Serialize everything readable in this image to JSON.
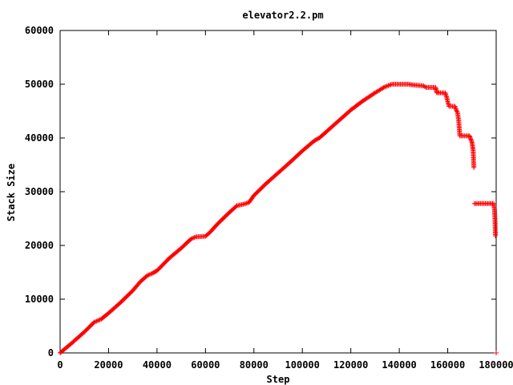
{
  "chart_data": {
    "type": "scatter",
    "title": "elevator2.2.pm",
    "xlabel": "Step",
    "ylabel": "Stack Size",
    "xlim": [
      0,
      180000
    ],
    "ylim": [
      0,
      60000
    ],
    "x_ticks": [
      "0",
      "20000",
      "40000",
      "60000",
      "80000",
      "100000",
      "120000",
      "140000",
      "160000",
      "180000"
    ],
    "y_ticks": [
      "0",
      "10000",
      "20000",
      "30000",
      "40000",
      "50000",
      "60000"
    ],
    "marker": "+",
    "grid": false,
    "legend": "none",
    "color": "#ff0000",
    "series": [
      {
        "points": [
          [
            0,
            0
          ],
          [
            5000,
            1900
          ],
          [
            10000,
            3900
          ],
          [
            14000,
            5700
          ],
          [
            15000,
            5900
          ],
          [
            17000,
            6300
          ],
          [
            20000,
            7400
          ],
          [
            25000,
            9400
          ],
          [
            30000,
            11600
          ],
          [
            33000,
            13200
          ],
          [
            36000,
            14400
          ],
          [
            38000,
            14800
          ],
          [
            40000,
            15300
          ],
          [
            45000,
            17600
          ],
          [
            50000,
            19500
          ],
          [
            54000,
            21200
          ],
          [
            56000,
            21600
          ],
          [
            60000,
            21700
          ],
          [
            62000,
            22500
          ],
          [
            65000,
            24000
          ],
          [
            70000,
            26200
          ],
          [
            73000,
            27400
          ],
          [
            76000,
            27700
          ],
          [
            78000,
            28000
          ],
          [
            80000,
            29300
          ],
          [
            85000,
            31500
          ],
          [
            90000,
            33500
          ],
          [
            95000,
            35500
          ],
          [
            100000,
            37600
          ],
          [
            105000,
            39500
          ],
          [
            107000,
            40000
          ],
          [
            110000,
            41200
          ],
          [
            115000,
            43200
          ],
          [
            120000,
            45200
          ],
          [
            125000,
            46900
          ],
          [
            130000,
            48400
          ],
          [
            134000,
            49500
          ],
          [
            137000,
            50000
          ],
          [
            140000,
            50000
          ],
          [
            144000,
            50000
          ],
          [
            145000,
            49900
          ],
          [
            150000,
            49700
          ],
          [
            151000,
            49400
          ],
          [
            155000,
            49400
          ],
          [
            155500,
            48400
          ],
          [
            159000,
            48400
          ],
          [
            159500,
            47700
          ],
          [
            160000,
            46800
          ],
          [
            160500,
            45900
          ],
          [
            163000,
            45900
          ],
          [
            163500,
            45200
          ],
          [
            164000,
            44800
          ],
          [
            164500,
            43400
          ],
          [
            165000,
            40400
          ],
          [
            169000,
            40400
          ],
          [
            169500,
            39800
          ],
          [
            170000,
            39200
          ],
          [
            170500,
            37700
          ],
          [
            170800,
            34500
          ],
          [
            171000,
            27800
          ],
          [
            179000,
            27800
          ],
          [
            179300,
            26600
          ],
          [
            179500,
            25000
          ],
          [
            179700,
            21800
          ],
          [
            180000,
            0
          ]
        ]
      }
    ]
  }
}
